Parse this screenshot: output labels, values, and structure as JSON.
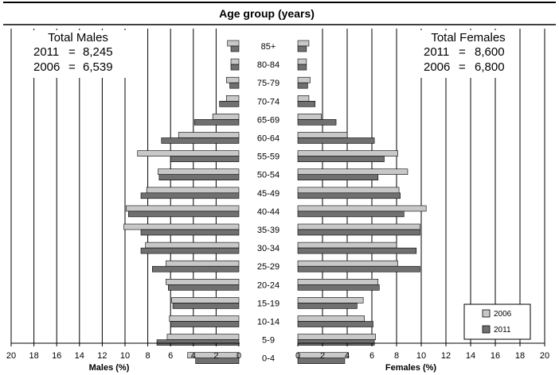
{
  "chart_data": {
    "type": "bar",
    "title": "Age group (years)",
    "age_groups": [
      "85+",
      "80-84",
      "75-79",
      "70-74",
      "65-69",
      "60-64",
      "55-59",
      "50-54",
      "45-49",
      "40-44",
      "35-39",
      "30-34",
      "25-29",
      "20-24",
      "15-19",
      "10-14",
      "5-9",
      "0-4"
    ],
    "males": {
      "totals_title": "Total Males",
      "totals": [
        {
          "year": "2011",
          "sep": "=",
          "value": "8,245"
        },
        {
          "year": "2006",
          "sep": "=",
          "value": "6,539"
        }
      ],
      "series": [
        {
          "name": "2006",
          "values": [
            1.0,
            0.7,
            1.1,
            1.1,
            2.3,
            5.3,
            8.9,
            7.1,
            8.1,
            9.9,
            10.1,
            8.2,
            6.4,
            6.4,
            5.9,
            6.1,
            6.3,
            4.5
          ]
        },
        {
          "name": "2011",
          "values": [
            0.7,
            0.7,
            0.8,
            1.7,
            3.9,
            6.8,
            6.0,
            7.0,
            8.6,
            9.7,
            8.6,
            8.6,
            7.6,
            6.2,
            5.8,
            6.0,
            7.2,
            3.8
          ]
        }
      ],
      "xlim": [
        20,
        0
      ],
      "ticks": [
        "20",
        "18",
        "16",
        "14",
        "12",
        "10",
        "8",
        "6",
        "4",
        "2",
        "0"
      ],
      "xlabel": "Males (%)"
    },
    "females": {
      "totals_title": "Total Females",
      "totals": [
        {
          "year": "2011",
          "sep": "=",
          "value": "8,600"
        },
        {
          "year": "2006",
          "sep": "=",
          "value": "6,800"
        }
      ],
      "series": [
        {
          "name": "2006",
          "values": [
            0.9,
            0.7,
            1.0,
            0.9,
            1.9,
            4.0,
            8.1,
            8.9,
            8.2,
            10.4,
            9.9,
            8.0,
            8.1,
            6.5,
            5.3,
            5.4,
            6.3,
            4.1
          ]
        },
        {
          "name": "2011",
          "values": [
            0.7,
            0.7,
            0.8,
            1.4,
            3.1,
            6.2,
            7.0,
            6.5,
            8.3,
            8.6,
            9.9,
            9.6,
            9.9,
            6.6,
            4.8,
            6.1,
            6.2,
            3.8
          ]
        }
      ],
      "xlim": [
        0,
        20
      ],
      "ticks": [
        "0",
        "2",
        "4",
        "6",
        "8",
        "10",
        "12",
        "14",
        "16",
        "18",
        "20"
      ],
      "xlabel": "Females (%)"
    },
    "legend": {
      "position": "bottom-right",
      "items": [
        "2006",
        "2011"
      ]
    },
    "colors": {
      "2006": "#c8c8c8",
      "2011": "#707070",
      "gridlines": "#000000"
    },
    "grid": true
  }
}
